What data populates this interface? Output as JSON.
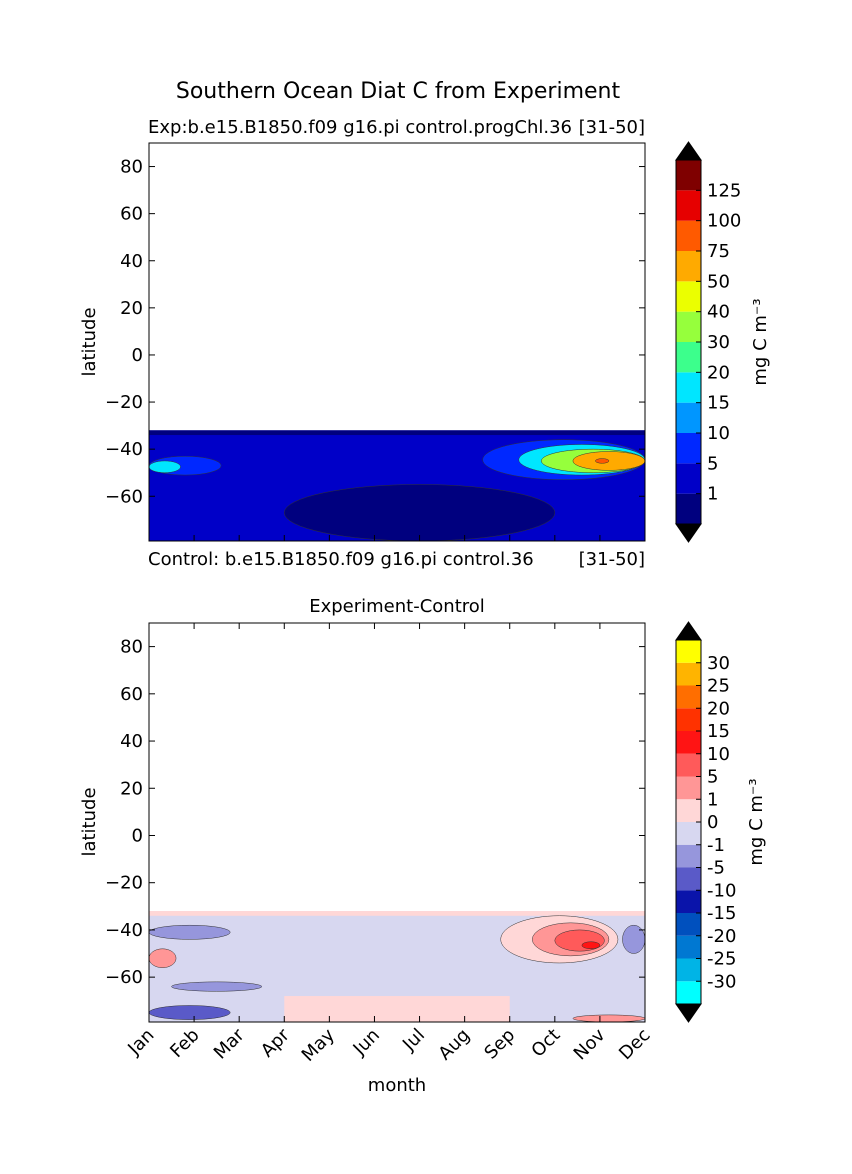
{
  "figure": {
    "title": "Southern Ocean Diat C from Experiment"
  },
  "colors": {
    "exp_levels": [
      "#00007f",
      "#0000c8",
      "#0028ff",
      "#0096ff",
      "#00e6ff",
      "#3cff8c",
      "#96ff3c",
      "#ebff00",
      "#ffaa00",
      "#ff5a00",
      "#e60000",
      "#7f0000"
    ],
    "exp_extend_under": "#000000",
    "exp_extend_over": "#000000",
    "diff_levels": [
      "#00ffff",
      "#00b4e6",
      "#0078d2",
      "#0050be",
      "#0a14aa",
      "#5a5ac8",
      "#9696dc",
      "#d7d7f0",
      "#ffd7d7",
      "#ff9696",
      "#ff5a5a",
      "#ff1414",
      "#ff3200",
      "#ff6e00",
      "#ffb400",
      "#ffff00"
    ],
    "diff_extend_under": "#000000",
    "diff_extend_over": "#000000"
  },
  "chart_data": [
    {
      "type": "heatmap",
      "title": "Exp:b.e15.B1850.f09 g16.pi control.progChl.36",
      "title_right": "[31-50]",
      "bottom_left_caption": "Control: b.e15.B1850.f09 g16.pi control.36",
      "bottom_right_caption": "[31-50]",
      "xlabel": "",
      "ylabel": "latitude",
      "xlim": [
        1,
        12
      ],
      "ylim": [
        -79,
        90
      ],
      "yticks": [
        80,
        60,
        40,
        20,
        0,
        -20,
        -40,
        -60
      ],
      "ytick_labels": [
        "80",
        "60",
        "40",
        "20",
        "0",
        "−20",
        "−40",
        "−60"
      ],
      "data_extent_lat": [
        -79,
        -32
      ],
      "colorbar": {
        "label": "mg C m⁻³",
        "tick_labels": [
          "1",
          "5",
          "10",
          "15",
          "20",
          "30",
          "40",
          "50",
          "75",
          "100",
          "125"
        ],
        "extend": "both"
      },
      "regions": [
        {
          "level": 1,
          "desc": "background",
          "lat": [
            -79,
            -32
          ],
          "month": [
            1,
            12
          ]
        },
        {
          "level": 0,
          "desc": "low band north",
          "lat": [
            -34,
            -32
          ],
          "month": [
            1,
            12
          ]
        },
        {
          "level": 0,
          "desc": "low deep south",
          "lat": [
            -79,
            -55
          ],
          "month": [
            4,
            10
          ]
        },
        {
          "level": 2,
          "desc": "Jan west edge",
          "lat": [
            -51,
            -43
          ],
          "month": [
            1,
            2.6
          ]
        },
        {
          "level": 4,
          "desc": "Jan core",
          "lat": [
            -50,
            -45
          ],
          "month": [
            1,
            1.7
          ]
        },
        {
          "level": 2,
          "desc": "Oct-Dec bloom outer",
          "lat": [
            -53,
            -36
          ],
          "month": [
            8.4,
            12
          ]
        },
        {
          "level": 4,
          "desc": "Oct-Dec bloom",
          "lat": [
            -51,
            -38
          ],
          "month": [
            9.2,
            12
          ]
        },
        {
          "level": 6,
          "desc": "Oct-Dec bloom inner",
          "lat": [
            -50,
            -40
          ],
          "month": [
            9.7,
            12
          ]
        },
        {
          "level": 8,
          "desc": "Nov peak",
          "lat": [
            -49,
            -41
          ],
          "month": [
            10.4,
            12
          ]
        },
        {
          "level": 9,
          "desc": "Nov max",
          "lat": [
            -46,
            -44
          ],
          "month": [
            10.9,
            11.2
          ]
        }
      ]
    },
    {
      "type": "heatmap",
      "title": "Experiment-Control",
      "xlabel": "month",
      "ylabel": "latitude",
      "xlim": [
        1,
        12
      ],
      "ylim": [
        -79,
        90
      ],
      "categories": [
        "Jan",
        "Feb",
        "Mar",
        "Apr",
        "May",
        "Jun",
        "Jul",
        "Aug",
        "Sep",
        "Oct",
        "Nov",
        "Dec"
      ],
      "yticks": [
        80,
        60,
        40,
        20,
        0,
        -20,
        -40,
        -60
      ],
      "ytick_labels": [
        "80",
        "60",
        "40",
        "20",
        "0",
        "−20",
        "−40",
        "−60"
      ],
      "data_extent_lat": [
        -79,
        -32
      ],
      "colorbar": {
        "label": "mg C m⁻³",
        "tick_labels": [
          "-30",
          "-25",
          "-20",
          "-15",
          "-10",
          "-5",
          "-1",
          "0",
          "1",
          "5",
          "10",
          "15",
          "20",
          "25",
          "30"
        ],
        "extend": "both"
      },
      "regions": [
        {
          "level": 7,
          "desc": "background slight negative",
          "lat": [
            -79,
            -32
          ],
          "month": [
            1,
            12
          ]
        },
        {
          "level": 8,
          "desc": "north band positive",
          "lat": [
            -34,
            -32
          ],
          "month": [
            1,
            12
          ]
        },
        {
          "level": 8,
          "desc": "south band positive",
          "lat": [
            -79,
            -68
          ],
          "month": [
            4,
            9
          ]
        },
        {
          "level": 6,
          "desc": "Jan-Feb negative",
          "lat": [
            -44,
            -38
          ],
          "month": [
            1,
            2.8
          ]
        },
        {
          "level": 6,
          "desc": "Feb negative",
          "lat": [
            -66,
            -62
          ],
          "month": [
            1.5,
            3.5
          ]
        },
        {
          "level": 9,
          "desc": "Jan positive",
          "lat": [
            -56,
            -48
          ],
          "month": [
            1,
            1.6
          ]
        },
        {
          "level": 5,
          "desc": "far south negative",
          "lat": [
            -78,
            -72
          ],
          "month": [
            1,
            2.8
          ]
        },
        {
          "level": 8,
          "desc": "Sep-Dec positive",
          "lat": [
            -54,
            -34
          ],
          "month": [
            8.8,
            11.4
          ]
        },
        {
          "level": 9,
          "desc": "Oct-Nov positive",
          "lat": [
            -51,
            -37
          ],
          "month": [
            9.5,
            11.2
          ]
        },
        {
          "level": 10,
          "desc": "Nov positive core",
          "lat": [
            -49,
            -40
          ],
          "month": [
            10,
            11.1
          ]
        },
        {
          "level": 11,
          "desc": "Nov peak",
          "lat": [
            -48,
            -45
          ],
          "month": [
            10.6,
            11
          ]
        },
        {
          "level": 6,
          "desc": "Dec negative",
          "lat": [
            -50,
            -38
          ],
          "month": [
            11.5,
            12
          ]
        },
        {
          "level": 9,
          "desc": "Nov-Dec south positive",
          "lat": [
            -79,
            -76
          ],
          "month": [
            10.4,
            12
          ]
        }
      ]
    }
  ]
}
